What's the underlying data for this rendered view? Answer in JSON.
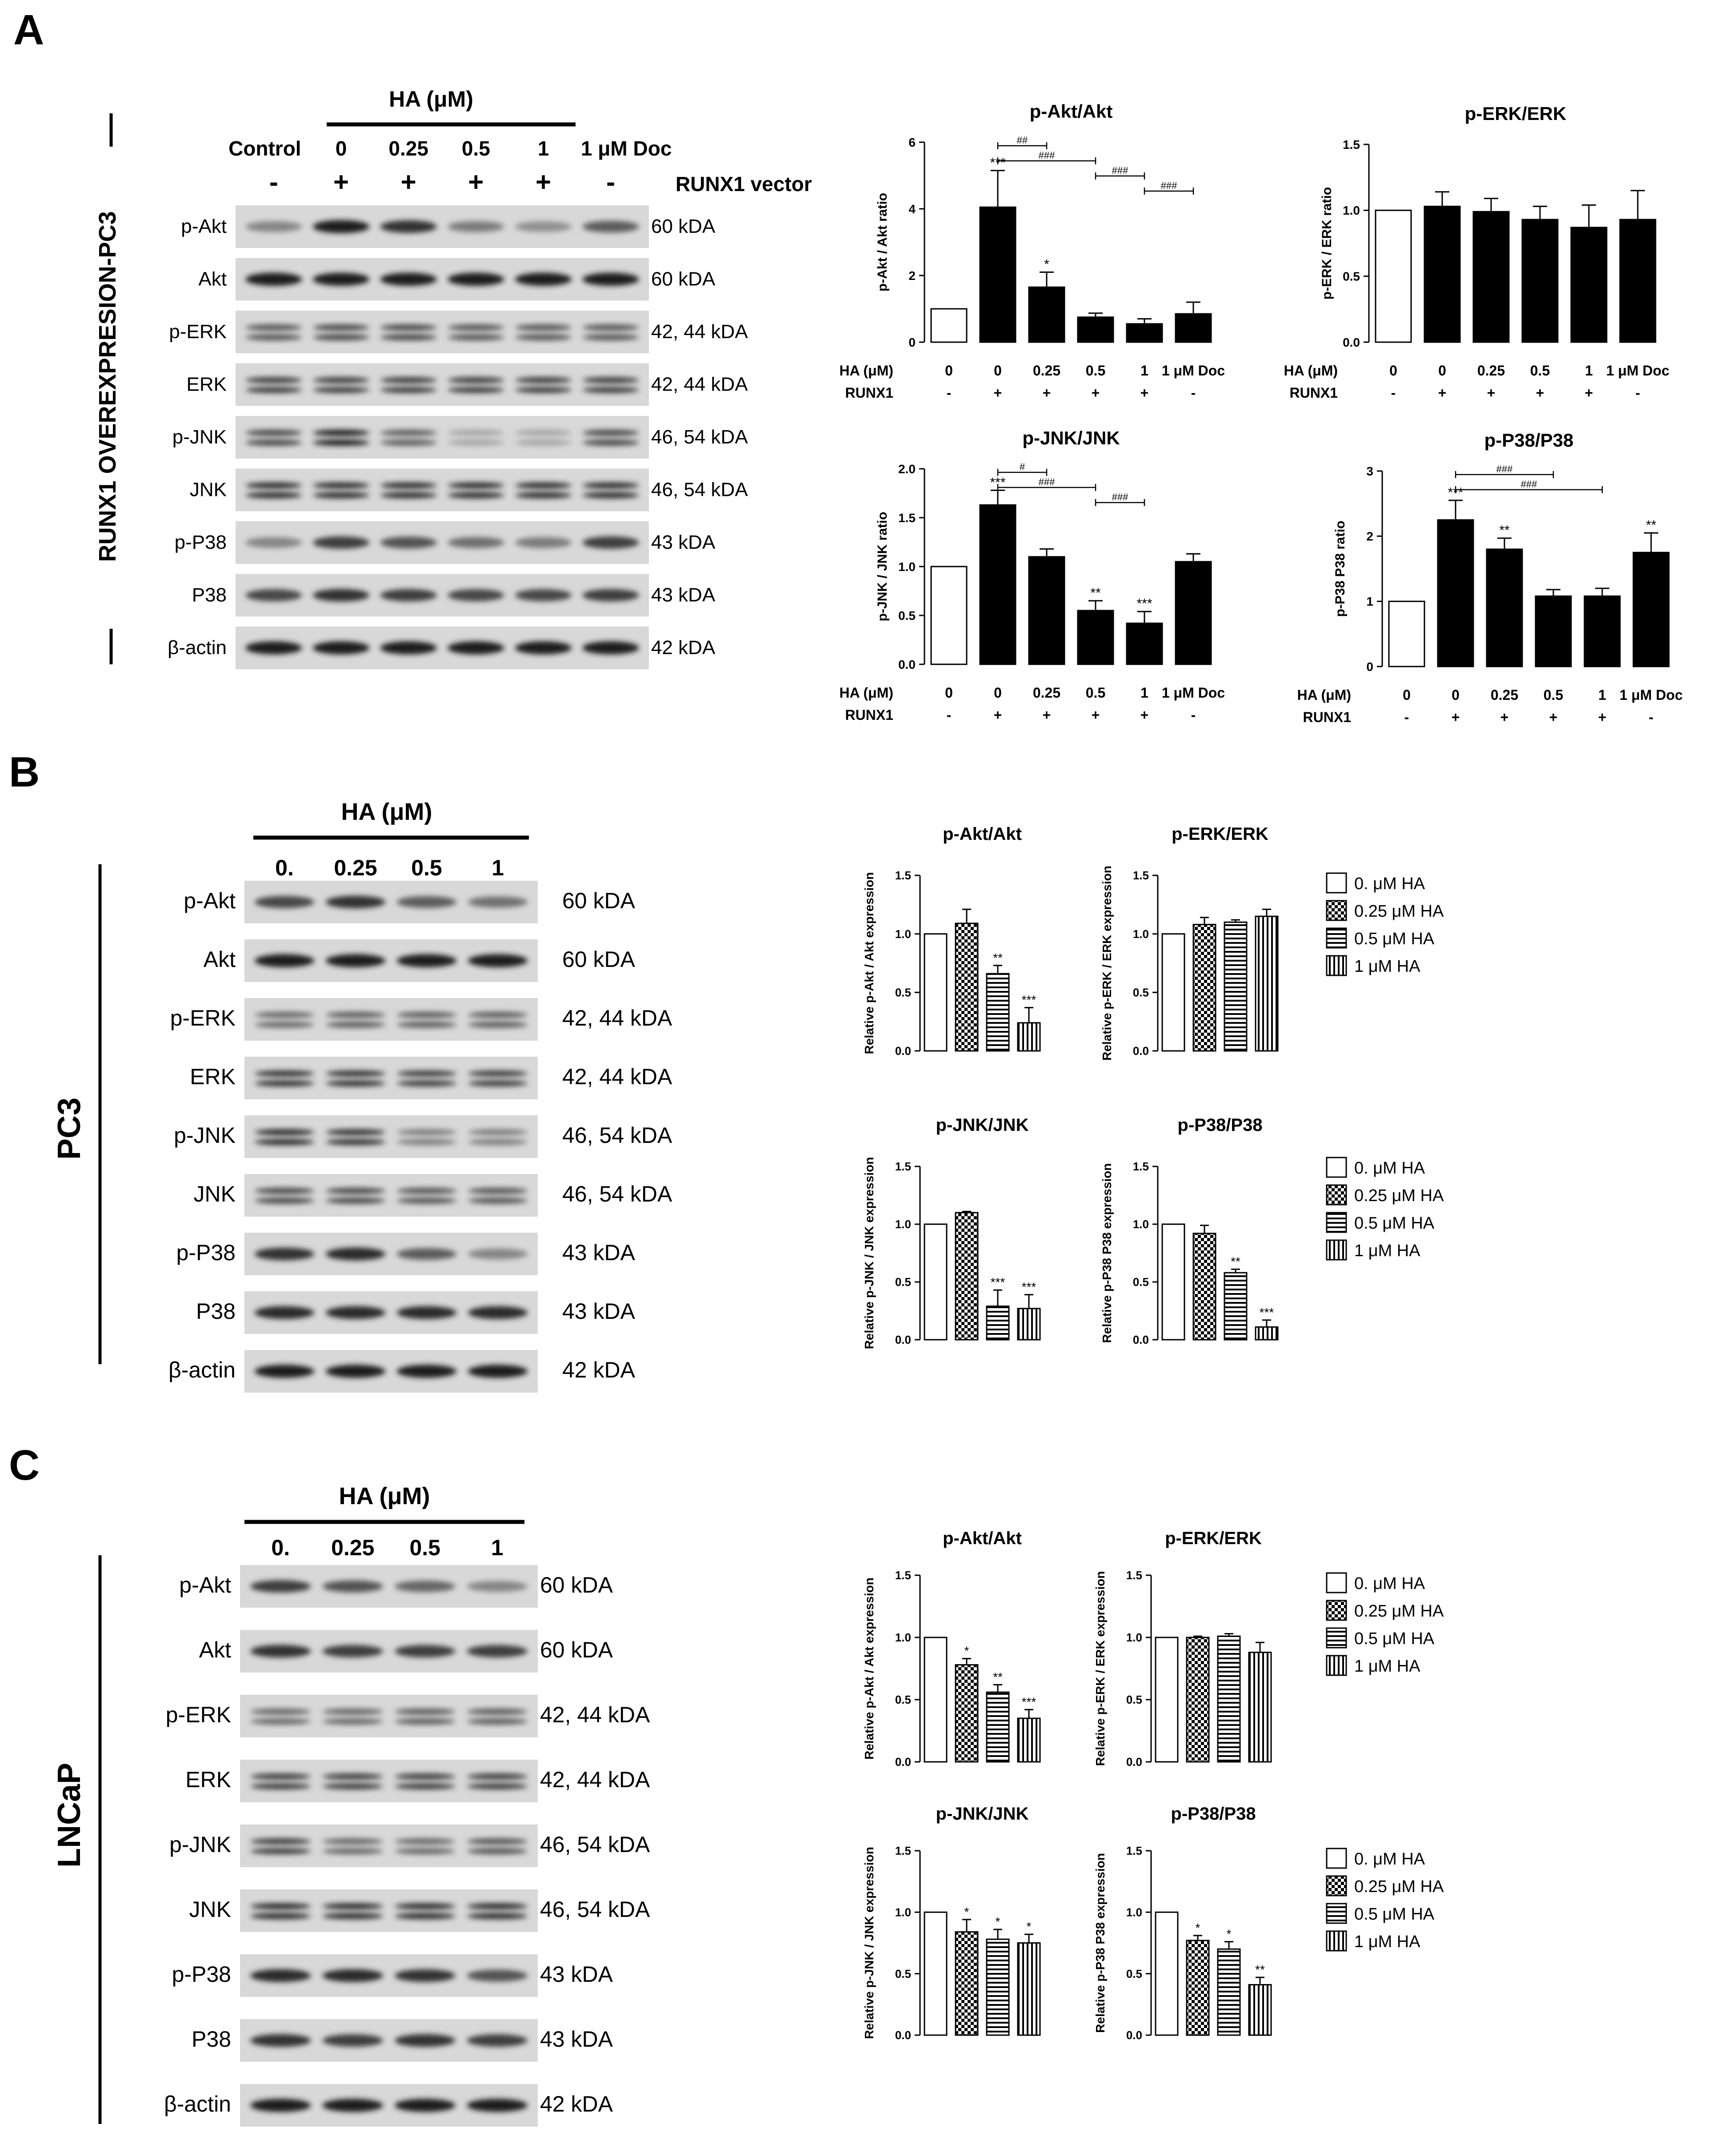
{
  "panels": [
    {
      "letter": "A",
      "side_label": "RUNX1 OVEREXPRESION-PC3",
      "treatment_header": "HA (μM)",
      "lane_labels": [
        "Control",
        "0",
        "0.25",
        "0.5",
        "1",
        "1 μM Doc"
      ],
      "vector_marks": [
        "-",
        "+",
        "+",
        "+",
        "+",
        "-"
      ],
      "vector_label": "RUNX1 vector",
      "blots": [
        {
          "protein": "p-Akt",
          "size": "60 kDA",
          "intensity": [
            0.45,
            0.95,
            0.85,
            0.5,
            0.4,
            0.65
          ]
        },
        {
          "protein": "Akt",
          "size": "60 kDA",
          "intensity": [
            0.95,
            0.95,
            0.95,
            0.95,
            0.95,
            0.95
          ]
        },
        {
          "protein": "p-ERK",
          "size": "42, 44 kDA",
          "intensity": [
            0.7,
            0.75,
            0.75,
            0.7,
            0.7,
            0.7
          ]
        },
        {
          "protein": "ERK",
          "size": "42, 44 kDA",
          "intensity": [
            0.8,
            0.8,
            0.8,
            0.8,
            0.8,
            0.8
          ]
        },
        {
          "protein": "p-JNK",
          "size": "46, 54 kDA",
          "intensity": [
            0.75,
            0.95,
            0.65,
            0.3,
            0.3,
            0.75
          ]
        },
        {
          "protein": "JNK",
          "size": "46, 54 kDA",
          "intensity": [
            0.9,
            0.9,
            0.9,
            0.9,
            0.9,
            0.9
          ]
        },
        {
          "protein": "p-P38",
          "size": "43 kDA",
          "intensity": [
            0.45,
            0.8,
            0.7,
            0.55,
            0.5,
            0.8
          ]
        },
        {
          "protein": "P38",
          "size": "43 kDA",
          "intensity": [
            0.75,
            0.85,
            0.8,
            0.75,
            0.75,
            0.8
          ]
        },
        {
          "protein": "β-actin",
          "size": "42 kDA",
          "intensity": [
            0.95,
            0.95,
            0.95,
            0.95,
            0.95,
            0.95
          ]
        }
      ]
    },
    {
      "letter": "B",
      "side_label": "PC3",
      "treatment_header": "HA (μM)",
      "lane_labels": [
        "0.",
        "0.25",
        "0.5",
        "1"
      ],
      "blots": [
        {
          "protein": "p-Akt",
          "size": "60 kDA",
          "intensity": [
            0.75,
            0.85,
            0.65,
            0.55
          ]
        },
        {
          "protein": "Akt",
          "size": "60 kDA",
          "intensity": [
            0.95,
            0.95,
            0.95,
            0.95
          ]
        },
        {
          "protein": "p-ERK",
          "size": "42, 44 kDA",
          "intensity": [
            0.6,
            0.65,
            0.65,
            0.65
          ]
        },
        {
          "protein": "ERK",
          "size": "42, 44 kDA",
          "intensity": [
            0.85,
            0.85,
            0.8,
            0.8
          ]
        },
        {
          "protein": "p-JNK",
          "size": "46, 54 kDA",
          "intensity": [
            0.9,
            0.85,
            0.5,
            0.5
          ]
        },
        {
          "protein": "JNK",
          "size": "46, 54 kDA",
          "intensity": [
            0.75,
            0.75,
            0.7,
            0.7
          ]
        },
        {
          "protein": "p-P38",
          "size": "43 kDA",
          "intensity": [
            0.85,
            0.9,
            0.65,
            0.45
          ]
        },
        {
          "protein": "P38",
          "size": "43 kDA",
          "intensity": [
            0.9,
            0.9,
            0.9,
            0.9
          ]
        },
        {
          "protein": "β-actin",
          "size": "42 kDA",
          "intensity": [
            0.95,
            0.95,
            0.95,
            0.95
          ]
        }
      ]
    },
    {
      "letter": "C",
      "side_label": "LNCaP",
      "treatment_header": "HA (μM)",
      "lane_labels": [
        "0.",
        "0.25",
        "0.5",
        "1"
      ],
      "blots": [
        {
          "protein": "p-Akt",
          "size": "60 kDA",
          "intensity": [
            0.8,
            0.7,
            0.6,
            0.45
          ]
        },
        {
          "protein": "Akt",
          "size": "60 kDA",
          "intensity": [
            0.85,
            0.8,
            0.8,
            0.8
          ]
        },
        {
          "protein": "p-ERK",
          "size": "42, 44 kDA",
          "intensity": [
            0.6,
            0.6,
            0.65,
            0.65
          ]
        },
        {
          "protein": "ERK",
          "size": "42, 44 kDA",
          "intensity": [
            0.8,
            0.8,
            0.8,
            0.8
          ]
        },
        {
          "protein": "p-JNK",
          "size": "46, 54 kDA",
          "intensity": [
            0.8,
            0.6,
            0.6,
            0.7
          ]
        },
        {
          "protein": "JNK",
          "size": "46, 54 kDA",
          "intensity": [
            0.9,
            0.9,
            0.9,
            0.9
          ]
        },
        {
          "protein": "p-P38",
          "size": "43 kDA",
          "intensity": [
            0.9,
            0.9,
            0.85,
            0.7
          ]
        },
        {
          "protein": "P38",
          "size": "43 kDA",
          "intensity": [
            0.85,
            0.8,
            0.85,
            0.8
          ]
        },
        {
          "protein": "β-actin",
          "size": "42 kDA",
          "intensity": [
            0.95,
            0.95,
            0.95,
            0.95
          ]
        }
      ]
    }
  ],
  "legend_entries": [
    "0.  μM HA",
    "0.25 μM HA",
    "0.5 μM HA",
    "1 μM HA"
  ],
  "chart_data": [
    {
      "id": "A-akt",
      "panel": "A",
      "type": "bar",
      "title": "p-Akt/Akt",
      "ylabel": "p-Akt / Akt ratio",
      "ylim": [
        0,
        6
      ],
      "yticks": [
        "0",
        "2",
        "4",
        "6"
      ],
      "categories": [
        "0",
        "0",
        "0.25",
        "0.5",
        "1",
        "1 μM Doc"
      ],
      "runx1": [
        "-",
        "+",
        "+",
        "+",
        "+",
        "-"
      ],
      "row_labels": [
        "HA (μM)",
        "RUNX1"
      ],
      "values": [
        1.0,
        4.05,
        1.65,
        0.75,
        0.55,
        0.85
      ],
      "errors": [
        0,
        1.1,
        0.45,
        0.12,
        0.15,
        0.35
      ],
      "stars": [
        "",
        "***",
        "*",
        "",
        "",
        ""
      ],
      "brackets": [
        {
          "from": 1,
          "to": 2,
          "label": "##"
        },
        {
          "from": 1,
          "to": 3,
          "label": "###"
        },
        {
          "from": 3,
          "to": 4,
          "label": "###"
        },
        {
          "from": 4,
          "to": 5,
          "label": "###"
        }
      ]
    },
    {
      "id": "A-erk",
      "panel": "A",
      "type": "bar",
      "title": "p-ERK/ERK",
      "ylabel": "p-ERK / ERK ratio",
      "ylim": [
        0,
        1.5
      ],
      "yticks": [
        "0.0",
        "0.5",
        "1.0",
        "1.5"
      ],
      "categories": [
        "0",
        "0",
        "0.25",
        "0.5",
        "1",
        "1 μM Doc"
      ],
      "runx1": [
        "-",
        "+",
        "+",
        "+",
        "+",
        "-"
      ],
      "row_labels": [
        "HA (μM)",
        "RUNX1"
      ],
      "values": [
        1.0,
        1.03,
        0.99,
        0.93,
        0.87,
        0.93
      ],
      "errors": [
        0,
        0.11,
        0.1,
        0.1,
        0.17,
        0.22
      ],
      "stars": [
        "",
        "",
        "",
        "",
        "",
        ""
      ],
      "brackets": []
    },
    {
      "id": "A-jnk",
      "panel": "A",
      "type": "bar",
      "title": "p-JNK/JNK",
      "ylabel": "p-JNK / JNK ratio",
      "ylim": [
        0,
        2
      ],
      "yticks": [
        "0.0",
        "0.5",
        "1.0",
        "1.5",
        "2.0"
      ],
      "categories": [
        "0",
        "0",
        "0.25",
        "0.5",
        "1",
        "1 μM Doc"
      ],
      "runx1": [
        "-",
        "+",
        "+",
        "+",
        "+",
        "-"
      ],
      "row_labels": [
        "HA (μM)",
        "RUNX1"
      ],
      "values": [
        1.0,
        1.63,
        1.1,
        0.55,
        0.42,
        1.05
      ],
      "errors": [
        0,
        0.15,
        0.08,
        0.1,
        0.12,
        0.08
      ],
      "stars": [
        "",
        "***",
        "",
        "**",
        "***",
        ""
      ],
      "brackets": [
        {
          "from": 1,
          "to": 2,
          "label": "#"
        },
        {
          "from": 1,
          "to": 3,
          "label": "###"
        },
        {
          "from": 3,
          "to": 4,
          "label": "###"
        }
      ]
    },
    {
      "id": "A-p38",
      "panel": "A",
      "type": "bar",
      "title": "p-P38/P38",
      "ylabel": "p-P38 P38 ratio",
      "ylim": [
        0,
        3
      ],
      "yticks": [
        "0",
        "1",
        "2",
        "3"
      ],
      "categories": [
        "0",
        "0",
        "0.25",
        "0.5",
        "1",
        "1 μM Doc"
      ],
      "runx1": [
        "-",
        "+",
        "+",
        "+",
        "+",
        "-"
      ],
      "row_labels": [
        "HA (μM)",
        "RUNX1"
      ],
      "values": [
        1.0,
        2.25,
        1.8,
        1.08,
        1.08,
        1.75
      ],
      "errors": [
        0,
        0.3,
        0.17,
        0.1,
        0.12,
        0.3
      ],
      "stars": [
        "",
        "***",
        "**",
        "",
        "",
        "**"
      ],
      "brackets": [
        {
          "from": 1,
          "to": 3,
          "label": "###"
        },
        {
          "from": 1,
          "to": 4,
          "label": "###"
        }
      ]
    },
    {
      "id": "B-akt",
      "panel": "B",
      "type": "bar",
      "title": "p-Akt/Akt",
      "ylabel": "Relative p-Akt / Akt expression",
      "ylim": [
        0,
        1.5
      ],
      "yticks": [
        "0.0",
        "0.5",
        "1.0",
        "1.5"
      ],
      "values": [
        1.0,
        1.09,
        0.66,
        0.24
      ],
      "errors": [
        0,
        0.12,
        0.07,
        0.13
      ],
      "stars": [
        "",
        "",
        "**",
        "***"
      ]
    },
    {
      "id": "B-erk",
      "panel": "B",
      "type": "bar",
      "title": "p-ERK/ERK",
      "ylabel": "Relative p-ERK / ERK expression",
      "ylim": [
        0,
        1.5
      ],
      "yticks": [
        "0.0",
        "0.5",
        "1.0",
        "1.5"
      ],
      "values": [
        1.0,
        1.08,
        1.1,
        1.15
      ],
      "errors": [
        0,
        0.06,
        0.02,
        0.06
      ],
      "stars": [
        "",
        "",
        "",
        ""
      ]
    },
    {
      "id": "B-jnk",
      "panel": "B",
      "type": "bar",
      "title": "p-JNK/JNK",
      "ylabel": "Relative p-JNK / JNK expression",
      "ylim": [
        0,
        1.5
      ],
      "yticks": [
        "0.0",
        "0.5",
        "1.0",
        "1.5"
      ],
      "values": [
        1.0,
        1.1,
        0.29,
        0.27
      ],
      "errors": [
        0,
        0.01,
        0.14,
        0.12
      ],
      "stars": [
        "",
        "",
        "***",
        "***"
      ]
    },
    {
      "id": "B-p38",
      "panel": "B",
      "type": "bar",
      "title": "p-P38/P38",
      "ylabel": "Relative p-P38 P38 expression",
      "ylim": [
        0,
        1.5
      ],
      "yticks": [
        "0.0",
        "0.5",
        "1.0",
        "1.5"
      ],
      "values": [
        1.0,
        0.92,
        0.58,
        0.11
      ],
      "errors": [
        0,
        0.07,
        0.03,
        0.06
      ],
      "stars": [
        "",
        "",
        "**",
        "***"
      ]
    },
    {
      "id": "C-akt",
      "panel": "C",
      "type": "bar",
      "title": "p-Akt/Akt",
      "ylabel": "Relative p-Akt / Akt expression",
      "ylim": [
        0,
        1.5
      ],
      "yticks": [
        "0.0",
        "0.5",
        "1.0",
        "1.5"
      ],
      "values": [
        1.0,
        0.78,
        0.56,
        0.35
      ],
      "errors": [
        0,
        0.05,
        0.06,
        0.07
      ],
      "stars": [
        "",
        "*",
        "**",
        "***"
      ]
    },
    {
      "id": "C-erk",
      "panel": "C",
      "type": "bar",
      "title": "p-ERK/ERK",
      "ylabel": "Relative p-ERK / ERK expression",
      "ylim": [
        0,
        1.5
      ],
      "yticks": [
        "0.0",
        "0.5",
        "1.0",
        "1.5"
      ],
      "values": [
        1.0,
        1.0,
        1.01,
        0.88
      ],
      "errors": [
        0,
        0.01,
        0.02,
        0.08
      ],
      "stars": [
        "",
        "",
        "",
        ""
      ]
    },
    {
      "id": "C-jnk",
      "panel": "C",
      "type": "bar",
      "title": "p-JNK/JNK",
      "ylabel": "Relative p-JNK / JNK expression",
      "ylim": [
        0,
        1.5
      ],
      "yticks": [
        "0.0",
        "0.5",
        "1.0",
        "1.5"
      ],
      "values": [
        1.0,
        0.84,
        0.78,
        0.75
      ],
      "errors": [
        0,
        0.1,
        0.08,
        0.07
      ],
      "stars": [
        "",
        "*",
        "*",
        "*"
      ]
    },
    {
      "id": "C-p38",
      "panel": "C",
      "type": "bar",
      "title": "p-P38/P38",
      "ylabel": "Relative p-P38 P38 expression",
      "ylim": [
        0,
        1.5
      ],
      "yticks": [
        "0.0",
        "0.5",
        "1.0",
        "1.5"
      ],
      "values": [
        1.0,
        0.77,
        0.7,
        0.41
      ],
      "errors": [
        0,
        0.04,
        0.06,
        0.06
      ],
      "stars": [
        "",
        "*",
        "*",
        "**"
      ]
    }
  ]
}
